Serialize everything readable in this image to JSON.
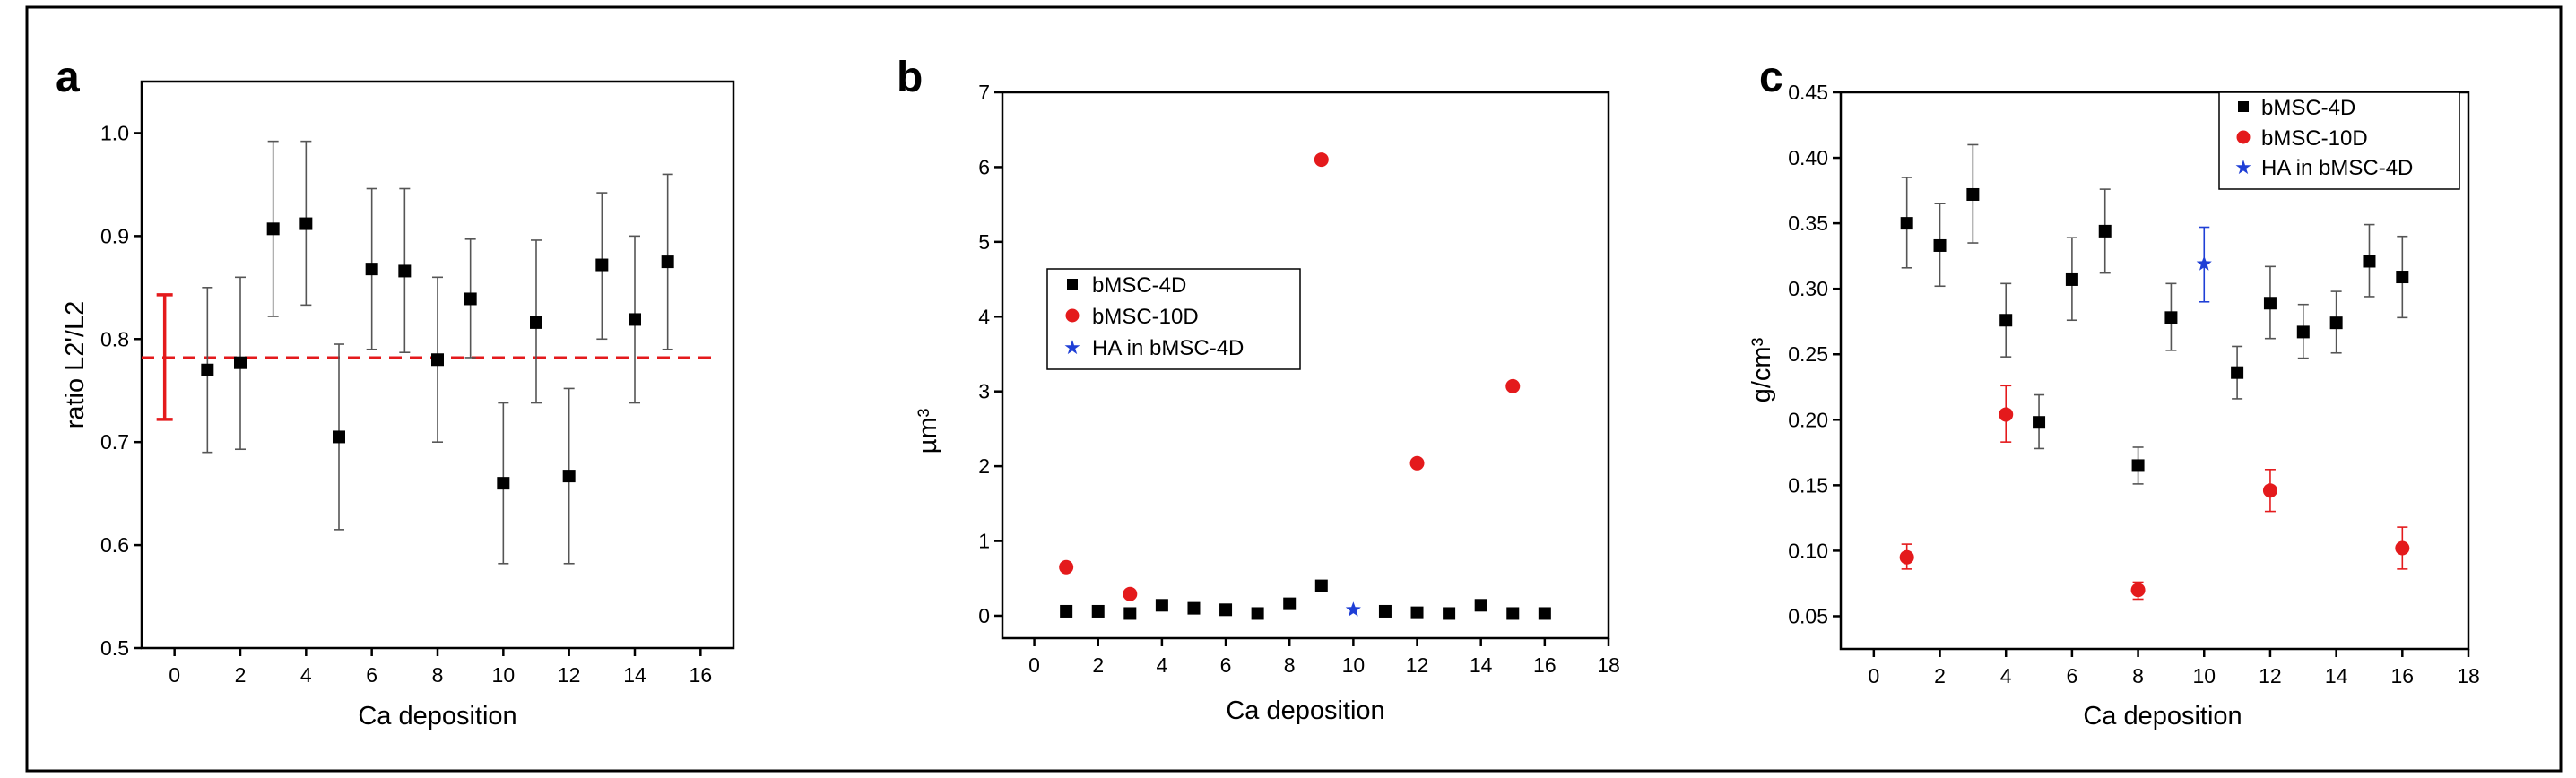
{
  "figure": {
    "frame": "black border around all three panels"
  },
  "chart_data": [
    {
      "type": "scatter",
      "panel_label": "a",
      "xlabel": "Ca deposition",
      "ylabel": "ratio L2'/L2",
      "xlim": [
        -1,
        17
      ],
      "ylim": [
        0.5,
        1.05
      ],
      "xticks": [
        0,
        2,
        4,
        6,
        8,
        10,
        12,
        14,
        16
      ],
      "yticks": [
        0.5,
        0.6,
        0.7,
        0.8,
        0.9,
        1.0
      ],
      "ytick_labels": [
        "0.5",
        "0.6",
        "0.7",
        "0.8",
        "0.9",
        "1.0"
      ],
      "reference": {
        "mean": 0.782,
        "low": 0.722,
        "high": 0.843,
        "x": -0.3,
        "color": "#e41a1c",
        "style": "dashed horizontal line with red range bar"
      },
      "series": [
        {
          "name": "ratio",
          "marker": "square",
          "color": "#000000",
          "x": [
            1,
            2,
            3,
            4,
            5,
            6,
            7,
            8,
            9,
            10,
            11,
            12,
            13,
            14,
            15
          ],
          "y": [
            0.77,
            0.777,
            0.907,
            0.912,
            0.705,
            0.868,
            0.866,
            0.78,
            0.839,
            0.66,
            0.816,
            0.667,
            0.872,
            0.819,
            0.875
          ],
          "err_low": [
            0.69,
            0.693,
            0.822,
            0.833,
            0.615,
            0.79,
            0.787,
            0.7,
            0.782,
            0.582,
            0.738,
            0.582,
            0.8,
            0.738,
            0.79
          ],
          "err_high": [
            0.85,
            0.86,
            0.992,
            0.992,
            0.795,
            0.946,
            0.946,
            0.86,
            0.897,
            0.738,
            0.896,
            0.752,
            0.942,
            0.9,
            0.96
          ]
        }
      ]
    },
    {
      "type": "scatter",
      "panel_label": "b",
      "xlabel": "Ca deposition",
      "ylabel": "µm³",
      "xlim": [
        -1,
        18
      ],
      "ylim": [
        -0.3,
        7
      ],
      "xticks": [
        0,
        2,
        4,
        6,
        8,
        10,
        12,
        14,
        16,
        18
      ],
      "yticks": [
        0,
        1,
        2,
        3,
        4,
        5,
        6,
        7
      ],
      "ytick_labels": [
        "0",
        "1",
        "2",
        "3",
        "4",
        "5",
        "6",
        "7"
      ],
      "legend": {
        "placement": "middle-left",
        "entries": [
          "bMSC-4D",
          "bMSC-10D",
          "HA in bMSC-4D"
        ]
      },
      "series": [
        {
          "name": "bMSC-4D",
          "marker": "square",
          "color": "#000000",
          "x": [
            1,
            2,
            3,
            4,
            5,
            6,
            7,
            8,
            9,
            11,
            12,
            13,
            14,
            15,
            16
          ],
          "y": [
            0.06,
            0.06,
            0.03,
            0.14,
            0.1,
            0.08,
            0.03,
            0.16,
            0.4,
            0.06,
            0.04,
            0.03,
            0.14,
            0.03,
            0.03
          ]
        },
        {
          "name": "bMSC-10D",
          "marker": "circle",
          "color": "#e41a1c",
          "x": [
            1,
            3,
            9,
            12,
            15
          ],
          "y": [
            0.65,
            0.29,
            6.1,
            2.04,
            3.07
          ]
        },
        {
          "name": "HA in bMSC-4D",
          "marker": "star",
          "color": "#1f3fd6",
          "x": [
            10
          ],
          "y": [
            0.08
          ]
        }
      ]
    },
    {
      "type": "scatter",
      "panel_label": "c",
      "xlabel": "Ca deposition",
      "ylabel": "g/cm³",
      "xlim": [
        -1,
        18
      ],
      "ylim": [
        0.025,
        0.45
      ],
      "xticks": [
        0,
        2,
        4,
        6,
        8,
        10,
        12,
        14,
        16,
        18
      ],
      "yticks": [
        0.05,
        0.1,
        0.15,
        0.2,
        0.25,
        0.3,
        0.35,
        0.4,
        0.45
      ],
      "ytick_labels": [
        "0.05",
        "0.10",
        "0.15",
        "0.20",
        "0.25",
        "0.30",
        "0.35",
        "0.40",
        "0.45"
      ],
      "legend": {
        "placement": "top-right",
        "entries": [
          "bMSC-4D",
          "bMSC-10D",
          "HA in bMSC-4D"
        ]
      },
      "series": [
        {
          "name": "bMSC-4D",
          "marker": "square",
          "color": "#000000",
          "x": [
            1,
            2,
            3,
            4,
            5,
            6,
            7,
            8,
            9,
            11,
            12,
            13,
            14,
            15,
            16
          ],
          "y": [
            0.35,
            0.333,
            0.372,
            0.276,
            0.198,
            0.307,
            0.344,
            0.165,
            0.278,
            0.236,
            0.289,
            0.267,
            0.274,
            0.321,
            0.309
          ],
          "err_low": [
            0.316,
            0.302,
            0.335,
            0.248,
            0.178,
            0.276,
            0.312,
            0.151,
            0.253,
            0.216,
            0.262,
            0.247,
            0.251,
            0.294,
            0.278
          ],
          "err_high": [
            0.385,
            0.365,
            0.41,
            0.304,
            0.219,
            0.339,
            0.376,
            0.179,
            0.304,
            0.256,
            0.317,
            0.288,
            0.298,
            0.349,
            0.34
          ]
        },
        {
          "name": "bMSC-10D",
          "marker": "circle",
          "color": "#e41a1c",
          "x": [
            1,
            4,
            8,
            12,
            16
          ],
          "y": [
            0.095,
            0.204,
            0.07,
            0.146,
            0.102
          ],
          "err_low": [
            0.086,
            0.183,
            0.063,
            0.13,
            0.086
          ],
          "err_high": [
            0.105,
            0.226,
            0.076,
            0.162,
            0.118
          ]
        },
        {
          "name": "HA in bMSC-4D",
          "marker": "star",
          "color": "#1f3fd6",
          "x": [
            10
          ],
          "y": [
            0.319
          ],
          "err_low": [
            0.29
          ],
          "err_high": [
            0.347
          ]
        }
      ]
    }
  ]
}
